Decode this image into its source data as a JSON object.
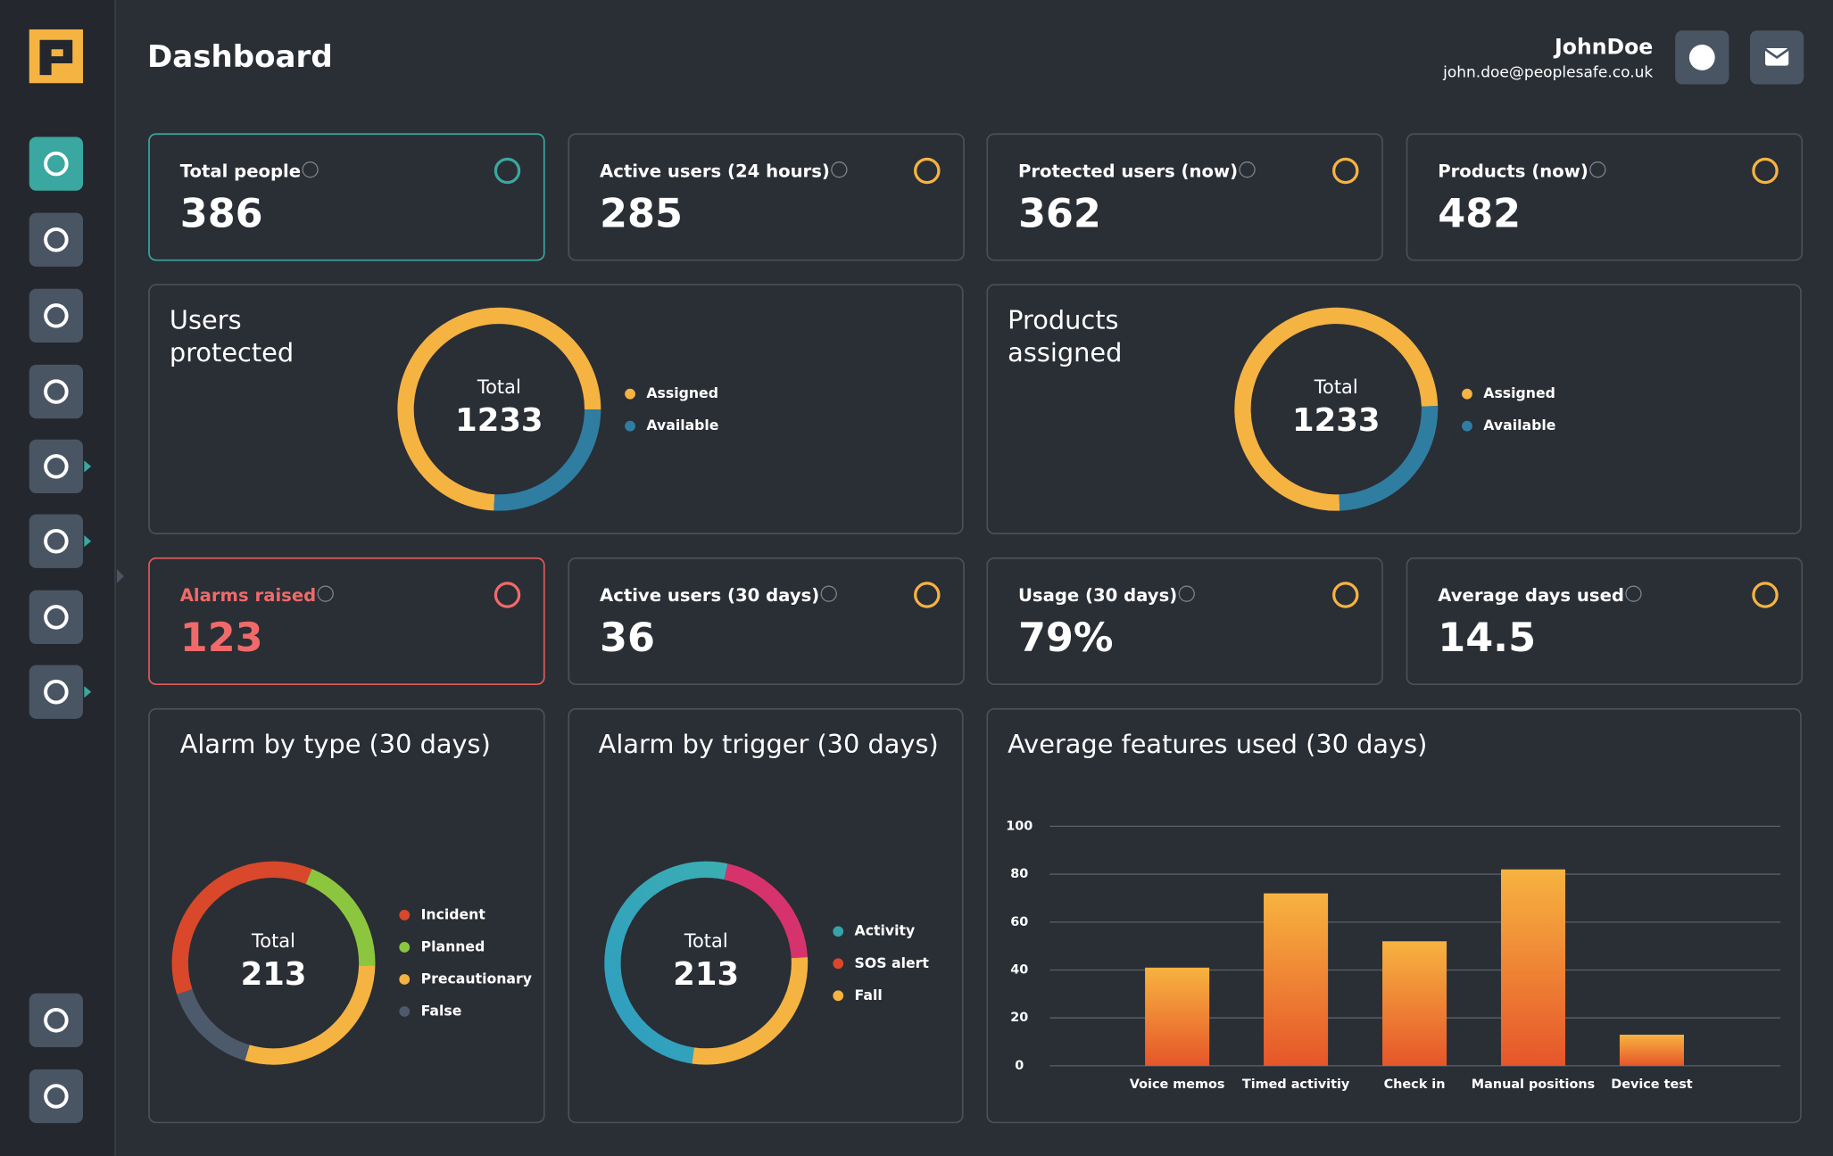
{
  "header": {
    "title": "Dashboard",
    "user_name": "JohnDoe",
    "user_email": "john.doe@peoplesafe.co.uk"
  },
  "stats_top": [
    {
      "label": "Total people",
      "value": "386"
    },
    {
      "label": "Active users (24 hours)",
      "value": "285"
    },
    {
      "label": "Protected users (now)",
      "value": "362"
    },
    {
      "label": "Products (now)",
      "value": "482"
    }
  ],
  "stats_middle": [
    {
      "label": "Alarms raised",
      "value": "123"
    },
    {
      "label": "Active users (30 days)",
      "value": "36"
    },
    {
      "label": "Usage (30 days)",
      "value": "79%"
    },
    {
      "label": "Average days used",
      "value": "14.5"
    }
  ],
  "donuts": [
    {
      "title_lines": [
        "Users",
        "protected"
      ],
      "center_label": "Total",
      "total": 1233,
      "segments": [
        {
          "name": "Assigned",
          "color": "#f5b342",
          "value": 915
        },
        {
          "name": "Available",
          "color": "#2f7ea1",
          "value": 318
        }
      ]
    },
    {
      "title_lines": [
        "Products",
        "assigned"
      ],
      "center_label": "Total",
      "total": 1233,
      "segments": [
        {
          "name": "Assigned",
          "color": "#f5b342",
          "value": 925
        },
        {
          "name": "Available",
          "color": "#2f7ea1",
          "value": 308
        }
      ]
    },
    {
      "title_lines": [
        "Alarm by type (30 days)"
      ],
      "center_label": "Total",
      "total": 213,
      "segments": [
        {
          "name": "Incident",
          "color": "#d9482a",
          "value": 77
        },
        {
          "name": "Planned",
          "color": "#8cc63f",
          "value": 41
        },
        {
          "name": "Precautionary",
          "color": "#f5b342",
          "value": 62
        },
        {
          "name": "False",
          "color": "#4d5a6b",
          "value": 33
        }
      ]
    },
    {
      "title_lines": [
        "Alarm by trigger (30 days)"
      ],
      "center_label": "Total",
      "total": 213,
      "segments": [
        {
          "name": "Activity",
          "color": "#36a3a8",
          "value": 109
        },
        {
          "name": "SOS alert",
          "color": "#d9482a",
          "value": 44
        },
        {
          "name": "Fall",
          "color": "#f5b342",
          "value": 60
        }
      ]
    }
  ],
  "chart_data": {
    "type": "bar",
    "title": "Average features used (30 days)",
    "categories": [
      "Voice memos",
      "Timed activitiy",
      "Check in",
      "Manual positions",
      "Device test"
    ],
    "values": [
      41,
      72,
      52,
      82,
      13
    ],
    "ylim": [
      0,
      100
    ],
    "yticks": [
      0,
      20,
      40,
      60,
      80,
      100
    ],
    "grid": true,
    "color": "#f0902f"
  }
}
